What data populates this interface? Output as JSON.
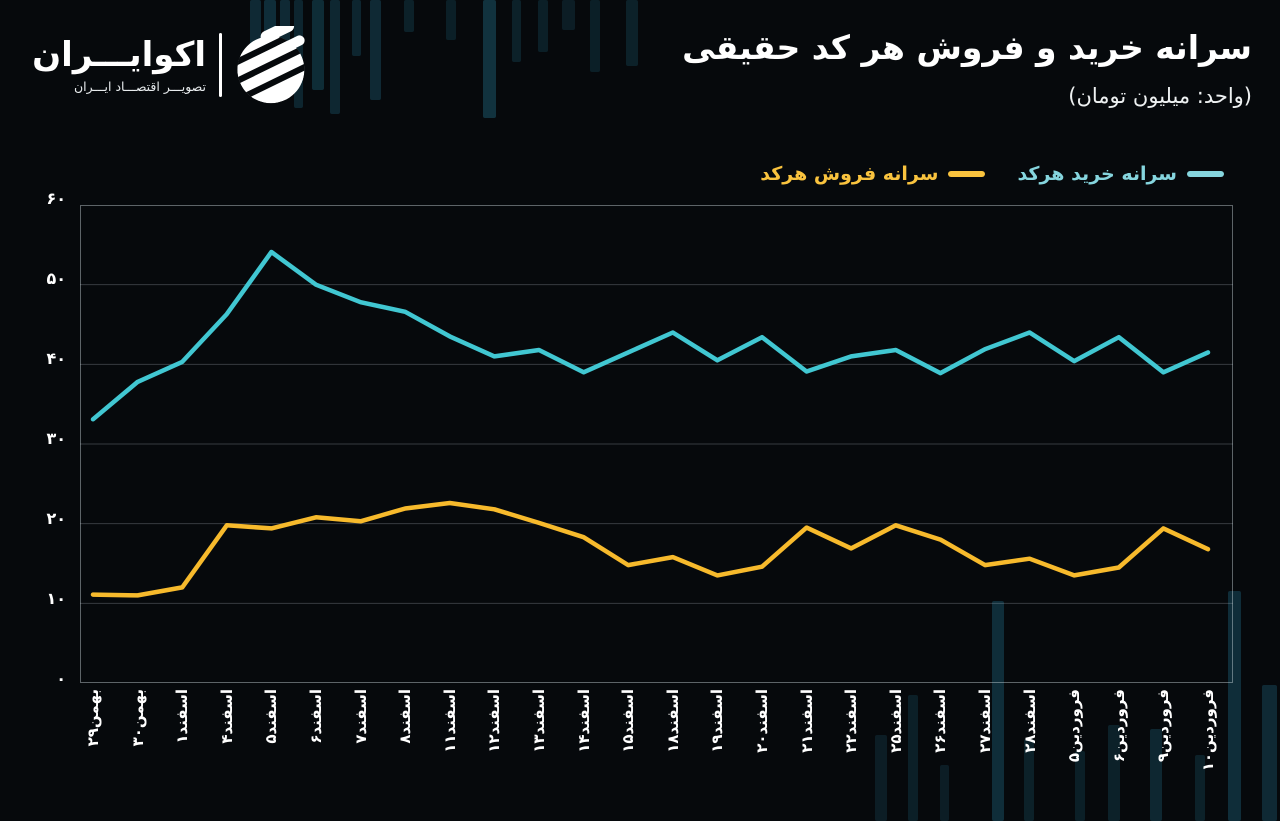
{
  "logo": {
    "name": "اکوایـــران",
    "tagline": "تصویـــر اقتصـــاد ایـــران"
  },
  "header": {
    "title": "سرانه خرید و فروش هر کد حقیقی",
    "subtitle": "(واحد: میلیون تومان)"
  },
  "legend": {
    "buy": {
      "label": "سرانه خرید هرکد",
      "color": "#85d5de"
    },
    "sell": {
      "label": "سرانه فروش هرکد",
      "color": "#f9c33e"
    }
  },
  "chart_data": {
    "type": "line",
    "title": "سرانه خرید و فروش هر کد حقیقی",
    "unit_label": "میلیون تومان",
    "categories": [
      "بهمن۲۹",
      "بهمن۳۰",
      "اسفند۱",
      "اسفند۴",
      "اسفند۵",
      "اسفند۶",
      "اسفند۷",
      "اسفند۸",
      "اسفند۱۱",
      "اسفند۱۲",
      "اسفند۱۳",
      "اسفند۱۴",
      "اسفند۱۵",
      "اسفند۱۸",
      "اسفند۱۹",
      "اسفند۲۰",
      "اسفند۲۱",
      "اسفند۲۲",
      "اسفند۲۵",
      "اسفند۲۶",
      "اسفند۲۷",
      "اسفند۲۸",
      "فروردین۵",
      "فروردین۶",
      "فروردین۹",
      "فروردین۱۰"
    ],
    "series": [
      {
        "name": "سرانه خرید هرکد",
        "color": "#41c7d2",
        "values": [
          33.1,
          37.8,
          40.3,
          46.3,
          54.1,
          50.0,
          47.8,
          46.6,
          43.5,
          41.0,
          41.8,
          39.0,
          41.5,
          44.0,
          40.5,
          43.4,
          39.1,
          41.0,
          41.8,
          38.9,
          41.9,
          44.0,
          40.4,
          43.4,
          39.0,
          41.5
        ]
      },
      {
        "name": "سرانه فروش هرکد",
        "color": "#f7ba2c",
        "values": [
          11.1,
          11.0,
          12.0,
          19.8,
          19.4,
          20.8,
          20.3,
          21.9,
          22.6,
          21.8,
          20.1,
          18.3,
          14.8,
          15.8,
          13.5,
          14.6,
          19.5,
          16.9,
          19.8,
          18.0,
          14.8,
          15.6,
          13.5,
          14.5,
          19.4,
          16.8
        ]
      }
    ],
    "ylim": [
      0,
      60
    ],
    "ytick_labels_top_to_bottom": [
      "۶۰",
      "۵۰",
      "۴۰",
      "۳۰",
      "۲۰",
      "۱۰",
      "۰"
    ],
    "grid": true,
    "legend_position": "top-right"
  }
}
